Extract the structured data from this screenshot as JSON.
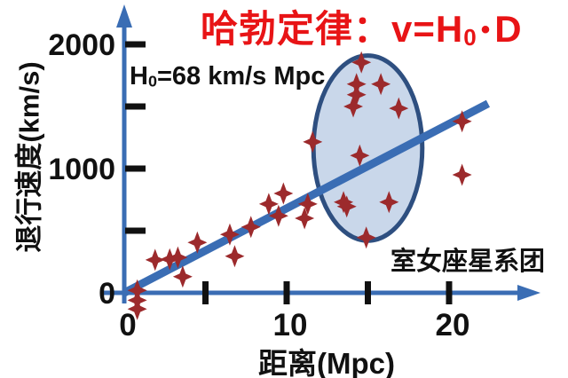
{
  "title": {
    "prefix": "哈勃定律：v=H",
    "sub": "0",
    "dot": "•",
    "suffix": "D",
    "color": "#e81416"
  },
  "h0_annotation": {
    "prefix": "H",
    "sub": "0",
    "suffix": "=68 km/s Mpc"
  },
  "cluster_label": "室女座星系团",
  "chart_data": {
    "type": "scatter",
    "title": "哈勃定律：v=H0·D",
    "subtitle": "H0=68 km/s Mpc",
    "xlabel": "距离(Mpc)",
    "ylabel": "退行速度(km/s)",
    "xlim": [
      0,
      25
    ],
    "ylim": [
      -200,
      2300
    ],
    "grid": false,
    "legend": false,
    "x_axis": {
      "ticks": [
        5,
        10,
        15,
        20
      ],
      "labels": [
        {
          "value": 0,
          "text": "0"
        },
        {
          "value": 10,
          "text": "10"
        },
        {
          "value": 20,
          "text": "20"
        }
      ]
    },
    "y_axis": {
      "ticks": [
        500,
        1000,
        1500,
        2000
      ],
      "labels": [
        {
          "value": 0,
          "text": "0"
        },
        {
          "value": 1000,
          "text": "1000"
        },
        {
          "value": 2000,
          "text": "2000"
        }
      ]
    },
    "trend_line": {
      "slope_km_s_per_mpc": 68,
      "x_start_mpc": 0,
      "x_end_mpc": 22.4
    },
    "virgo_ellipse": {
      "label": "室女座星系团",
      "center_mpc": 15.0,
      "center_kms": 1165,
      "rx_mpc": 3.35,
      "ry_kms": 745
    },
    "points_mpc_kms": [
      [
        0.8,
        20
      ],
      [
        0.8,
        -60
      ],
      [
        0.8,
        -130
      ],
      [
        1.9,
        265
      ],
      [
        2.8,
        270
      ],
      [
        3.3,
        285
      ],
      [
        3.6,
        130
      ],
      [
        4.5,
        405
      ],
      [
        6.5,
        470
      ],
      [
        6.8,
        295
      ],
      [
        7.8,
        530
      ],
      [
        8.9,
        715
      ],
      [
        9.8,
        800
      ],
      [
        9.5,
        620
      ],
      [
        11.3,
        715
      ],
      [
        11.1,
        600
      ],
      [
        13.5,
        730
      ],
      [
        13.7,
        695
      ],
      [
        16.3,
        730
      ],
      [
        14.9,
        445
      ],
      [
        11.6,
        1215
      ],
      [
        14.5,
        1105
      ],
      [
        14.6,
        1855
      ],
      [
        14.3,
        1680
      ],
      [
        14.3,
        1595
      ],
      [
        15.8,
        1680
      ],
      [
        14.1,
        1500
      ],
      [
        16.9,
        1485
      ],
      [
        20.8,
        1380
      ],
      [
        20.8,
        950
      ]
    ],
    "colors": {
      "axis": "#3a6db4",
      "trend": "#3a6db4",
      "point": "#9c2a2c",
      "ellipse_fill": "#c9d7ea",
      "ellipse_stroke": "#2e4f80",
      "tick": "#111111",
      "text": "#111111",
      "title_red": "#e81416"
    }
  }
}
